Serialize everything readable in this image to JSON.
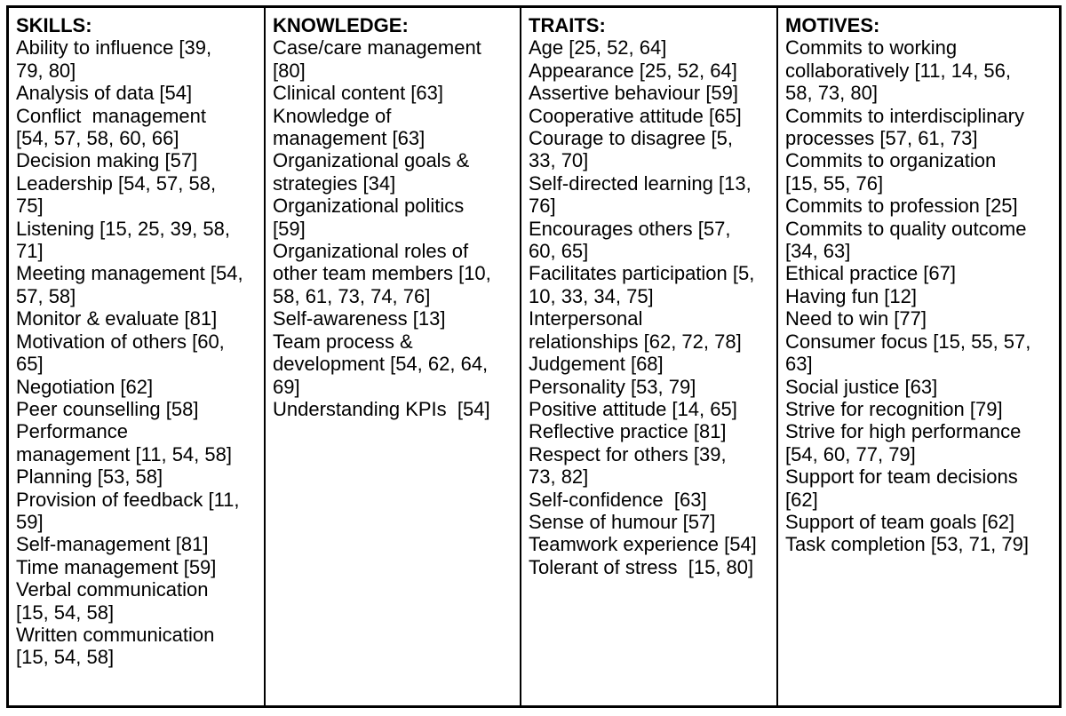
{
  "colors": {
    "background": "#ffffff",
    "text": "#000000",
    "border": "#000000"
  },
  "columns": [
    {
      "header": "SKILLS:",
      "items": [
        "Ability to influence [39, 79, 80]",
        "Analysis of data [54]",
        "Conflict  management [54, 57, 58, 60, 66]",
        "Decision making [57]",
        "Leadership [54, 57, 58, 75]",
        "Listening [15, 25, 39, 58, 71]",
        "Meeting management [54, 57, 58]",
        "Monitor & evaluate [81]",
        "Motivation of others [60, 65]",
        "Negotiation [62]",
        "Peer counselling [58]",
        "Performance management [11, 54, 58]",
        "Planning [53, 58]",
        "Provision of feedback [11, 59]",
        "Self-management [81]",
        "Time management [59]",
        "Verbal communication [15, 54, 58]",
        "Written communication [15, 54, 58]"
      ]
    },
    {
      "header": "KNOWLEDGE:",
      "items": [
        "Case/care management [80]",
        "Clinical content [63]",
        "Knowledge of management [63]",
        "Organizational goals & strategies [34]",
        "Organizational politics [59]",
        "Organizational roles of other team members [10, 58, 61, 73, 74, 76]",
        "Self-awareness [13]",
        "Team process & development [54, 62, 64, 69]",
        "Understanding KPIs  [54]"
      ]
    },
    {
      "header": "TRAITS:",
      "items": [
        "Age [25, 52, 64]",
        "Appearance [25, 52, 64]",
        "Assertive behaviour [59]",
        "Cooperative attitude [65]",
        "Courage to disagree [5, 33, 70]",
        "Self-directed learning [13, 76]",
        "Encourages others [57, 60, 65]",
        "Facilitates participation [5, 10, 33, 34, 75]",
        "Interpersonal relationships [62, 72, 78]",
        "Judgement [68]",
        "Personality [53, 79]",
        "Positive attitude [14, 65]",
        "Reflective practice [81]",
        "Respect for others [39, 73, 82]",
        "Self-confidence  [63]",
        "Sense of humour [57]",
        "Teamwork experience [54]",
        "Tolerant of stress  [15, 80]"
      ]
    },
    {
      "header": "MOTIVES:",
      "items": [
        "Commits to working collaboratively [11, 14, 56, 58, 73, 80]",
        "Commits to interdisciplinary processes [57, 61, 73]",
        "Commits to organization [15, 55, 76]",
        "Commits to profession [25]",
        "Commits to quality outcome [34, 63]",
        "Ethical practice [67]",
        "Having fun [12]",
        "Need to win [77]",
        "Consumer focus [15, 55, 57, 63]",
        "Social justice [63]",
        "Strive for recognition [79]",
        "Strive for high performance [54, 60, 77, 79]",
        "Support for team decisions [62]",
        "Support of team goals [62]",
        "Task completion [53, 71, 79]"
      ]
    }
  ]
}
